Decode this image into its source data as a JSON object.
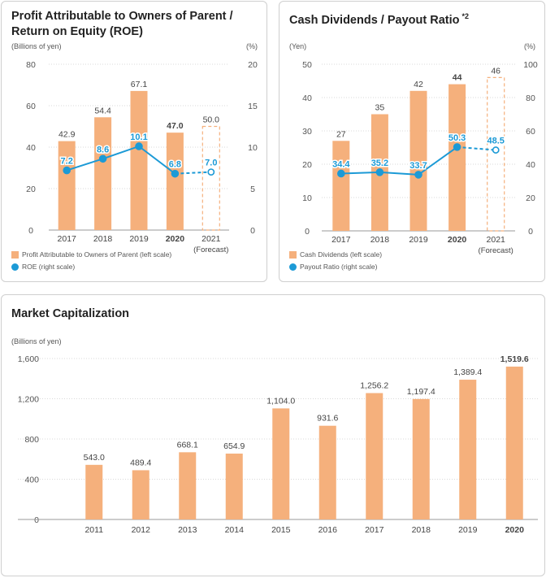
{
  "chart_data": [
    {
      "type": "bar",
      "title_line1": "Profit Attributable to Owners of Parent /",
      "title_line2": "Return on Equity (ROE)",
      "left_unit": "(Billions of yen)",
      "right_unit": "(%)",
      "ylim": [
        0,
        80
      ],
      "y2lim": [
        0,
        20
      ],
      "left_ticks": [
        "80",
        "60",
        "40",
        "20",
        "0"
      ],
      "right_ticks": [
        "20",
        "15",
        "10",
        "5",
        "0"
      ],
      "categories": [
        "2017",
        "2018",
        "2019",
        "2020",
        "2021"
      ],
      "forecast_note": "(Forecast)",
      "bar_values": [
        42.9,
        54.4,
        67.1,
        47.0,
        50.0
      ],
      "bar_labels": [
        "42.9",
        "54.4",
        "67.1",
        "47.0",
        "50.0"
      ],
      "line_values": [
        7.2,
        8.6,
        10.1,
        6.8,
        7.0
      ],
      "line_labels": [
        "7.2",
        "8.6",
        "10.1",
        "6.8",
        "7.0"
      ],
      "legend_bar": "Profit Attributable to Owners of Parent (left scale)",
      "legend_line": "ROE (right scale)"
    },
    {
      "type": "bar",
      "title": "Cash Dividends / Payout Ratio",
      "title_note": "*2",
      "left_unit": "(Yen)",
      "right_unit": "(%)",
      "ylim": [
        0,
        50
      ],
      "y2lim": [
        0,
        100
      ],
      "left_ticks": [
        "50",
        "40",
        "30",
        "20",
        "10",
        "0"
      ],
      "right_ticks": [
        "100",
        "80",
        "60",
        "40",
        "20",
        "0"
      ],
      "categories": [
        "2017",
        "2018",
        "2019",
        "2020",
        "2021"
      ],
      "forecast_note": "(Forecast)",
      "bar_values": [
        27,
        35,
        42,
        44,
        46
      ],
      "bar_labels": [
        "27",
        "35",
        "42",
        "44",
        "46"
      ],
      "line_values": [
        34.4,
        35.2,
        33.7,
        50.3,
        48.5
      ],
      "line_labels": [
        "34.4",
        "35.2",
        "33.7",
        "50.3",
        "48.5"
      ],
      "legend_bar": "Cash Dividends (left scale)",
      "legend_line": "Payout Ratio (right scale)"
    },
    {
      "type": "bar",
      "title": "Market Capitalization",
      "left_unit": "(Billions of yen)",
      "ylim": [
        0,
        1600
      ],
      "left_ticks": [
        "1,600",
        "1,200",
        "800",
        "400",
        "0"
      ],
      "categories": [
        "2011",
        "2012",
        "2013",
        "2014",
        "2015",
        "2016",
        "2017",
        "2018",
        "2019",
        "2020"
      ],
      "values": [
        543.0,
        489.4,
        668.1,
        654.9,
        1104.0,
        931.6,
        1256.2,
        1197.4,
        1389.4,
        1519.6
      ],
      "value_labels": [
        "543.0",
        "489.4",
        "668.1",
        "654.9",
        "1,104.0",
        "931.6",
        "1,256.2",
        "1,197.4",
        "1,389.4",
        "1,519.6"
      ]
    }
  ],
  "colors": {
    "bar": "#f5b07c",
    "line": "#1c9ad6",
    "grid": "#d9d9d9",
    "axis": "#999999"
  }
}
